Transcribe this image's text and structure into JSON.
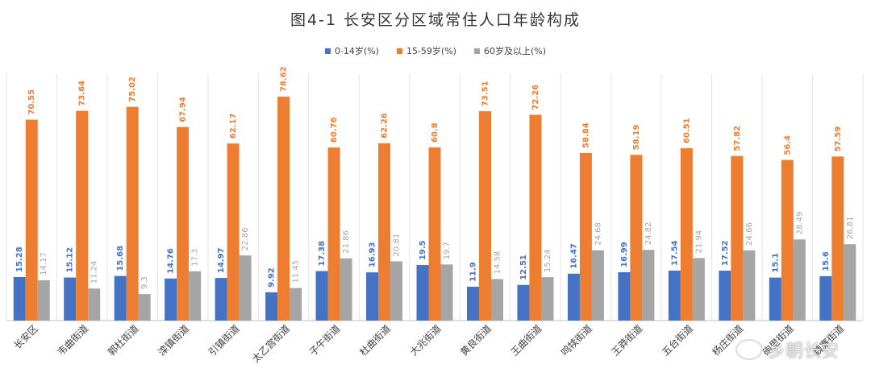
{
  "chart_data": {
    "type": "bar",
    "title": "图4-1  长安区分区域常住人口年龄构成",
    "categories": [
      "长安区",
      "韦曲街道",
      "郭杜街道",
      "滦镇街道",
      "引镇街道",
      "太乙宫街道",
      "子午街道",
      "杜曲街道",
      "大兆街道",
      "黄良街道",
      "王曲街道",
      "鸣犊街道",
      "王莽街道",
      "五台街道",
      "杨庄街道",
      "砲里街道",
      "魏寨街道"
    ],
    "series": [
      {
        "name": "0-14岁(%)",
        "color": "#4472c4",
        "values": [
          15.28,
          15.12,
          15.68,
          14.76,
          14.97,
          9.92,
          17.38,
          16.93,
          19.5,
          11.9,
          12.51,
          16.47,
          16.99,
          17.54,
          17.52,
          15.1,
          15.6
        ]
      },
      {
        "name": "15-59岁(%)",
        "color": "#ed7d31",
        "values": [
          70.55,
          73.64,
          75.02,
          67.94,
          62.17,
          78.62,
          60.76,
          62.26,
          60.8,
          73.51,
          72.26,
          58.84,
          58.19,
          60.51,
          57.82,
          56.4,
          57.59
        ]
      },
      {
        "name": "60岁及以上(%)",
        "color": "#a5a5a5",
        "values": [
          14.17,
          11.24,
          9.3,
          17.3,
          22.86,
          11.45,
          21.86,
          20.81,
          19.7,
          14.58,
          15.24,
          24.68,
          24.82,
          21.94,
          24.66,
          28.49,
          26.81
        ]
      }
    ],
    "ylim": [
      0,
      90
    ],
    "grid": false,
    "legend_position": "top"
  },
  "watermark": "乡朝长安"
}
